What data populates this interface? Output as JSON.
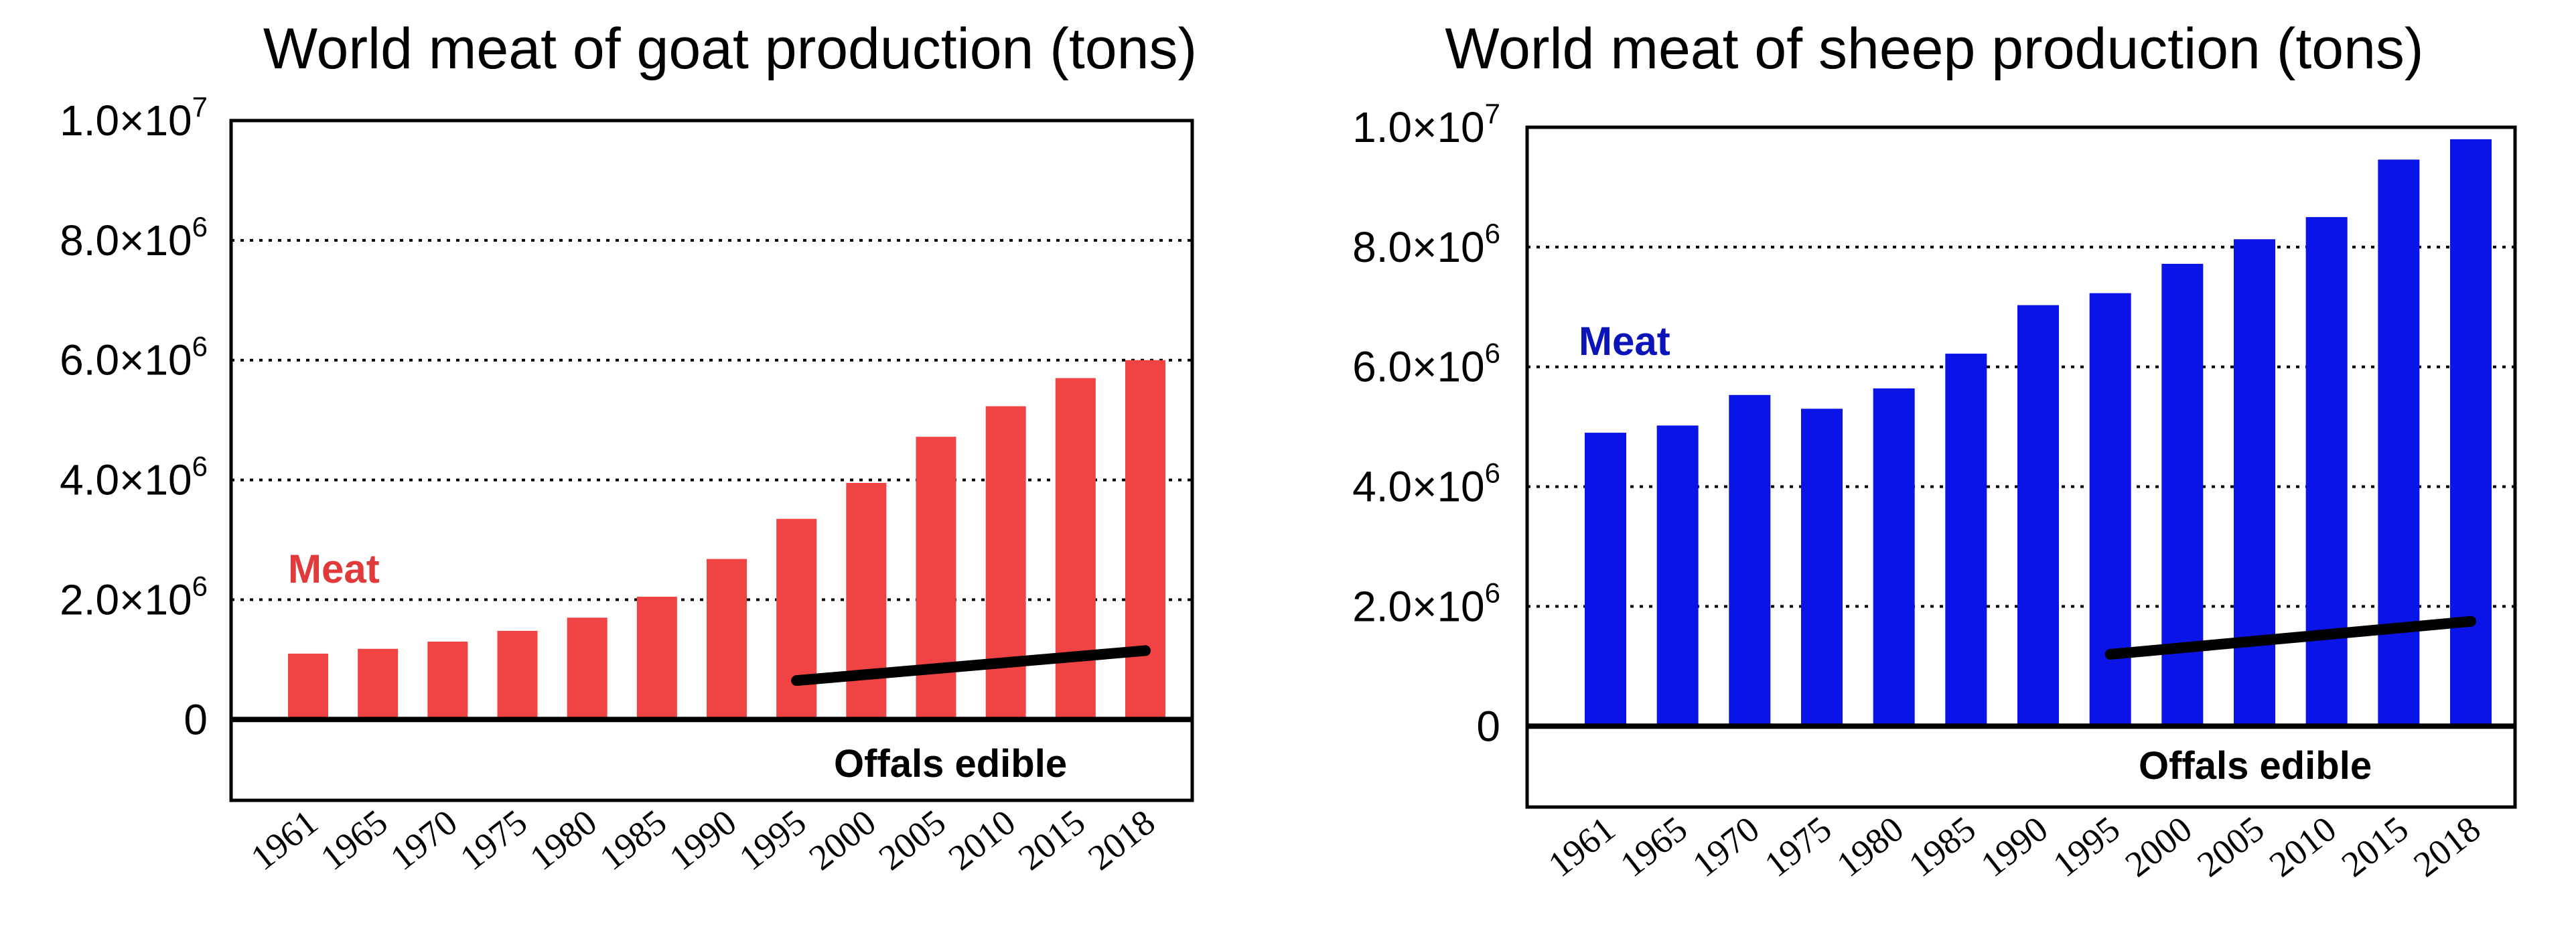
{
  "chart_data": [
    {
      "type": "bar",
      "title": "World meat of goat production (tons)",
      "categories": [
        "1961",
        "1965",
        "1970",
        "1975",
        "1980",
        "1985",
        "1990",
        "1995",
        "2000",
        "2005",
        "2010",
        "2015",
        "2018"
      ],
      "series": [
        {
          "name": "Meat",
          "color": "#f04343",
          "values": [
            1100000,
            1180000,
            1300000,
            1480000,
            1700000,
            2050000,
            2680000,
            3350000,
            3950000,
            4720000,
            5230000,
            5700000,
            6000000
          ]
        },
        {
          "name": "Offals edible",
          "type": "line",
          "color": "#000000",
          "x": [
            "1995",
            "2018"
          ],
          "values": [
            650000,
            1150000
          ]
        }
      ],
      "series_labels": {
        "meat": "Meat",
        "offals": "Offals edible"
      },
      "ylim": [
        -1350000,
        10000000
      ],
      "ytick_values": [
        0,
        2000000,
        4000000,
        6000000,
        8000000,
        10000000
      ],
      "yticks": [
        {
          "label": "0",
          "base": "0",
          "exp": ""
        },
        {
          "label": "2.0×10^6",
          "base": "2.0×10",
          "exp": "6"
        },
        {
          "label": "4.0×10^6",
          "base": "4.0×10",
          "exp": "6"
        },
        {
          "label": "6.0×10^6",
          "base": "6.0×10",
          "exp": "6"
        },
        {
          "label": "8.0×10^6",
          "base": "8.0×10",
          "exp": "6"
        },
        {
          "label": "1.0×10^7",
          "base": "1.0×10",
          "exp": "7"
        }
      ],
      "grid": true,
      "xlabel": "",
      "ylabel": ""
    },
    {
      "type": "bar",
      "title": "World meat of sheep production (tons)",
      "categories": [
        "1961",
        "1965",
        "1970",
        "1975",
        "1980",
        "1985",
        "1990",
        "1995",
        "2000",
        "2005",
        "2010",
        "2015",
        "2018"
      ],
      "series": [
        {
          "name": "Meat",
          "color": "#0b14e6",
          "values": [
            4900000,
            5020000,
            5530000,
            5300000,
            5640000,
            6220000,
            7030000,
            7230000,
            7720000,
            8130000,
            8500000,
            9460000,
            9800000
          ]
        },
        {
          "name": "Offals edible",
          "type": "line",
          "color": "#000000",
          "x": [
            "1995",
            "2018"
          ],
          "values": [
            1200000,
            1750000
          ]
        }
      ],
      "series_labels": {
        "meat": "Meat",
        "offals": "Offals edible"
      },
      "ylim": [
        -1350000,
        10000000
      ],
      "ytick_values": [
        0,
        2000000,
        4000000,
        6000000,
        8000000,
        10000000
      ],
      "yticks": [
        {
          "label": "0",
          "base": "0",
          "exp": ""
        },
        {
          "label": "2.0×10^6",
          "base": "2.0×10",
          "exp": "6"
        },
        {
          "label": "4.0×10^6",
          "base": "4.0×10",
          "exp": "6"
        },
        {
          "label": "6.0×10^6",
          "base": "6.0×10",
          "exp": "6"
        },
        {
          "label": "8.0×10^6",
          "base": "8.0×10",
          "exp": "6"
        },
        {
          "label": "1.0×10^7",
          "base": "1.0×10",
          "exp": "7"
        }
      ],
      "grid": true,
      "xlabel": "",
      "ylabel": ""
    }
  ]
}
